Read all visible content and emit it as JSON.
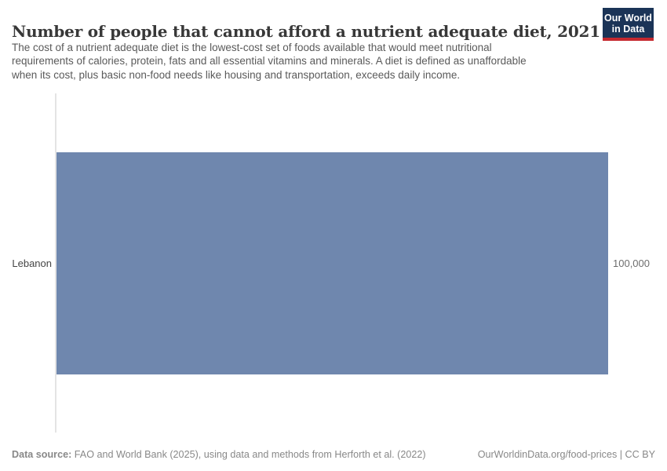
{
  "header": {
    "title": "Number of people that cannot afford a nutrient adequate diet, 2021",
    "subtitle_lines": [
      "The cost of a nutrient adequate diet is the lowest-cost set of foods available that would meet nutritional",
      "requirements of calories, protein, fats and all essential vitamins and minerals. A diet is defined as unaffordable",
      "when its cost, plus basic non-food needs like housing and transportation, exceeds daily income."
    ],
    "logo": {
      "line1": "Our World",
      "line2": "in Data"
    }
  },
  "chart_data": {
    "type": "bar",
    "orientation": "horizontal",
    "title": "Number of people that cannot afford a nutrient adequate diet, 2021",
    "categories": [
      "Lebanon"
    ],
    "values": [
      100000
    ],
    "value_labels": [
      "100,000"
    ],
    "xlim": [
      0,
      100000
    ],
    "grid": false,
    "legend": false,
    "bar_color": "#6f87ae",
    "axis_line_color": "#e4e4e4"
  },
  "footer": {
    "source_label": "Data source:",
    "source_text": " FAO and World Bank (2025), using data and methods from Herforth et al. (2022)",
    "license": "OurWorldinData.org/food-prices | CC BY"
  },
  "colors": {
    "bar": "#6f87ae",
    "logo_bg": "#1b3457",
    "logo_accent": "#c5292f",
    "title_text": "#383838",
    "subtitle_text": "#5a5a5a",
    "footer_text": "#888888"
  }
}
